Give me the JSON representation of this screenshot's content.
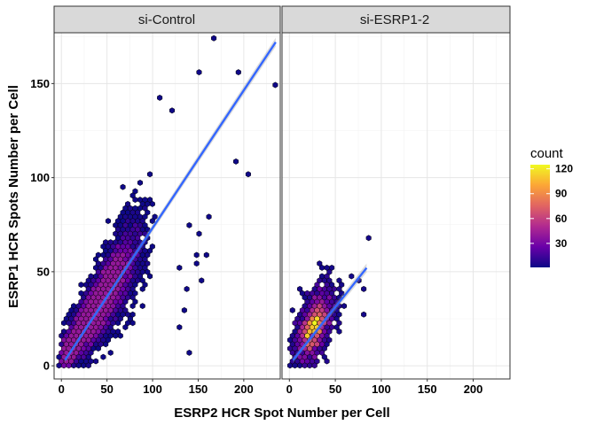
{
  "chart_data": {
    "type": "hexbin-scatter",
    "xlabel": "ESRP2 HCR Spot Number per Cell",
    "ylabel": "ESRP1 HCR Spots Number per Cell",
    "xlim": [
      -8,
      240
    ],
    "ylim": [
      -7,
      177
    ],
    "x_ticks": [
      0,
      50,
      100,
      150,
      200
    ],
    "y_ticks": [
      0,
      50,
      100,
      150
    ],
    "grid": true,
    "legend": {
      "title": "count",
      "placement": "right",
      "ticks": [
        30,
        60,
        90,
        120
      ],
      "range": [
        1,
        125
      ],
      "palette": [
        "#0d0887",
        "#6a00a8",
        "#b12a90",
        "#e16462",
        "#fca636",
        "#f0f921"
      ]
    },
    "fit_color": "#3366ff",
    "facets": [
      {
        "name": "si-Control",
        "fit": {
          "x": [
            4,
            235
          ],
          "y": [
            3,
            172
          ]
        },
        "outliers": [
          [
            168,
            173
          ],
          [
            152,
            155
          ],
          [
            196,
            156
          ],
          [
            234,
            150
          ],
          [
            191,
            108
          ],
          [
            206,
            102
          ],
          [
            162,
            80
          ],
          [
            110,
            142
          ],
          [
            120,
            135
          ],
          [
            140,
            6
          ],
          [
            136,
            30
          ],
          [
            132,
            20
          ],
          [
            128,
            52
          ],
          [
            160,
            58
          ],
          [
            150,
            55
          ],
          [
            155,
            45
          ],
          [
            146,
            60
          ],
          [
            140,
            40
          ],
          [
            152,
            70
          ],
          [
            138,
            75
          ]
        ]
      },
      {
        "name": "si-ESRP1-2",
        "fit": {
          "x": [
            4,
            84
          ],
          "y": [
            3,
            52
          ]
        },
        "outliers": [
          [
            85,
            67
          ],
          [
            83,
            27
          ],
          [
            80,
            40
          ],
          [
            75,
            45
          ],
          [
            68,
            48
          ]
        ]
      }
    ]
  }
}
